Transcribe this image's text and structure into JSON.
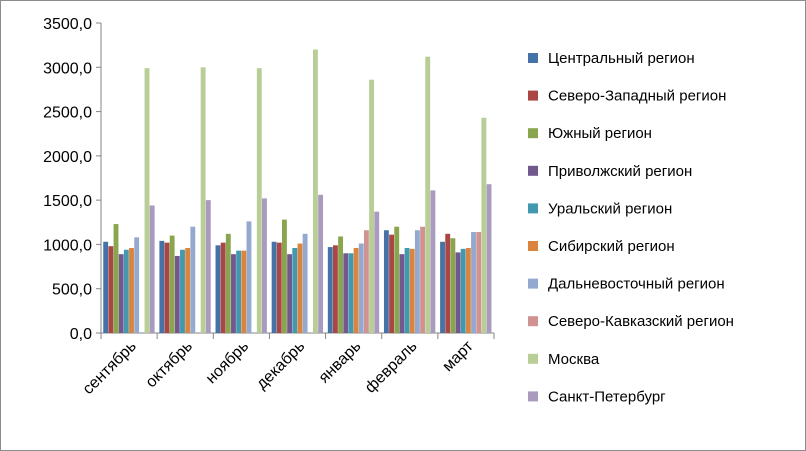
{
  "chart_data": {
    "type": "bar",
    "title": "",
    "xlabel": "",
    "ylabel": "",
    "ylim": [
      0,
      3500
    ],
    "yticks": [
      "0,0",
      "500,0",
      "1000,0",
      "1500,0",
      "2000,0",
      "2500,0",
      "3000,0",
      "3500,0"
    ],
    "ytick_values": [
      0,
      500,
      1000,
      1500,
      2000,
      2500,
      3000,
      3500
    ],
    "grid": false,
    "legend_position": "right",
    "categories": [
      "сентябрь",
      "октябрь",
      "ноябрь",
      "декабрь",
      "январь",
      "февраль",
      "март"
    ],
    "series": [
      {
        "name": "Центральный регион",
        "color": "#4572A7",
        "values": [
          1030,
          1040,
          990,
          1030,
          970,
          1160,
          1030
        ]
      },
      {
        "name": "Северо-Западный регион",
        "color": "#AA4643",
        "values": [
          980,
          1020,
          1020,
          1020,
          990,
          1110,
          1120
        ]
      },
      {
        "name": "Южный регион",
        "color": "#89A54E",
        "values": [
          1230,
          1100,
          1120,
          1280,
          1090,
          1200,
          1070
        ]
      },
      {
        "name": "Приволжский регион",
        "color": "#71588F",
        "values": [
          890,
          870,
          890,
          890,
          900,
          890,
          910
        ]
      },
      {
        "name": "Уральский регион",
        "color": "#4198AF",
        "values": [
          940,
          940,
          930,
          960,
          900,
          960,
          950
        ]
      },
      {
        "name": "Сибирский регион",
        "color": "#DB843D",
        "values": [
          960,
          960,
          930,
          1010,
          960,
          950,
          960
        ]
      },
      {
        "name": "Дальневосточный регион",
        "color": "#93A9CF",
        "values": [
          1080,
          1200,
          1260,
          1120,
          1010,
          1160,
          1140
        ]
      },
      {
        "name": "Северо-Кавказский регион",
        "color": "#D19392",
        "values": [
          0,
          0,
          0,
          0,
          1160,
          1200,
          1140
        ]
      },
      {
        "name": "Москва",
        "color": "#B9CD96",
        "values": [
          2990,
          3000,
          2990,
          3200,
          2860,
          3120,
          2430
        ]
      },
      {
        "name": "Санкт-Петербург",
        "color": "#A99BBD",
        "values": [
          1440,
          1500,
          1520,
          1560,
          1370,
          1610,
          1680
        ]
      }
    ]
  }
}
